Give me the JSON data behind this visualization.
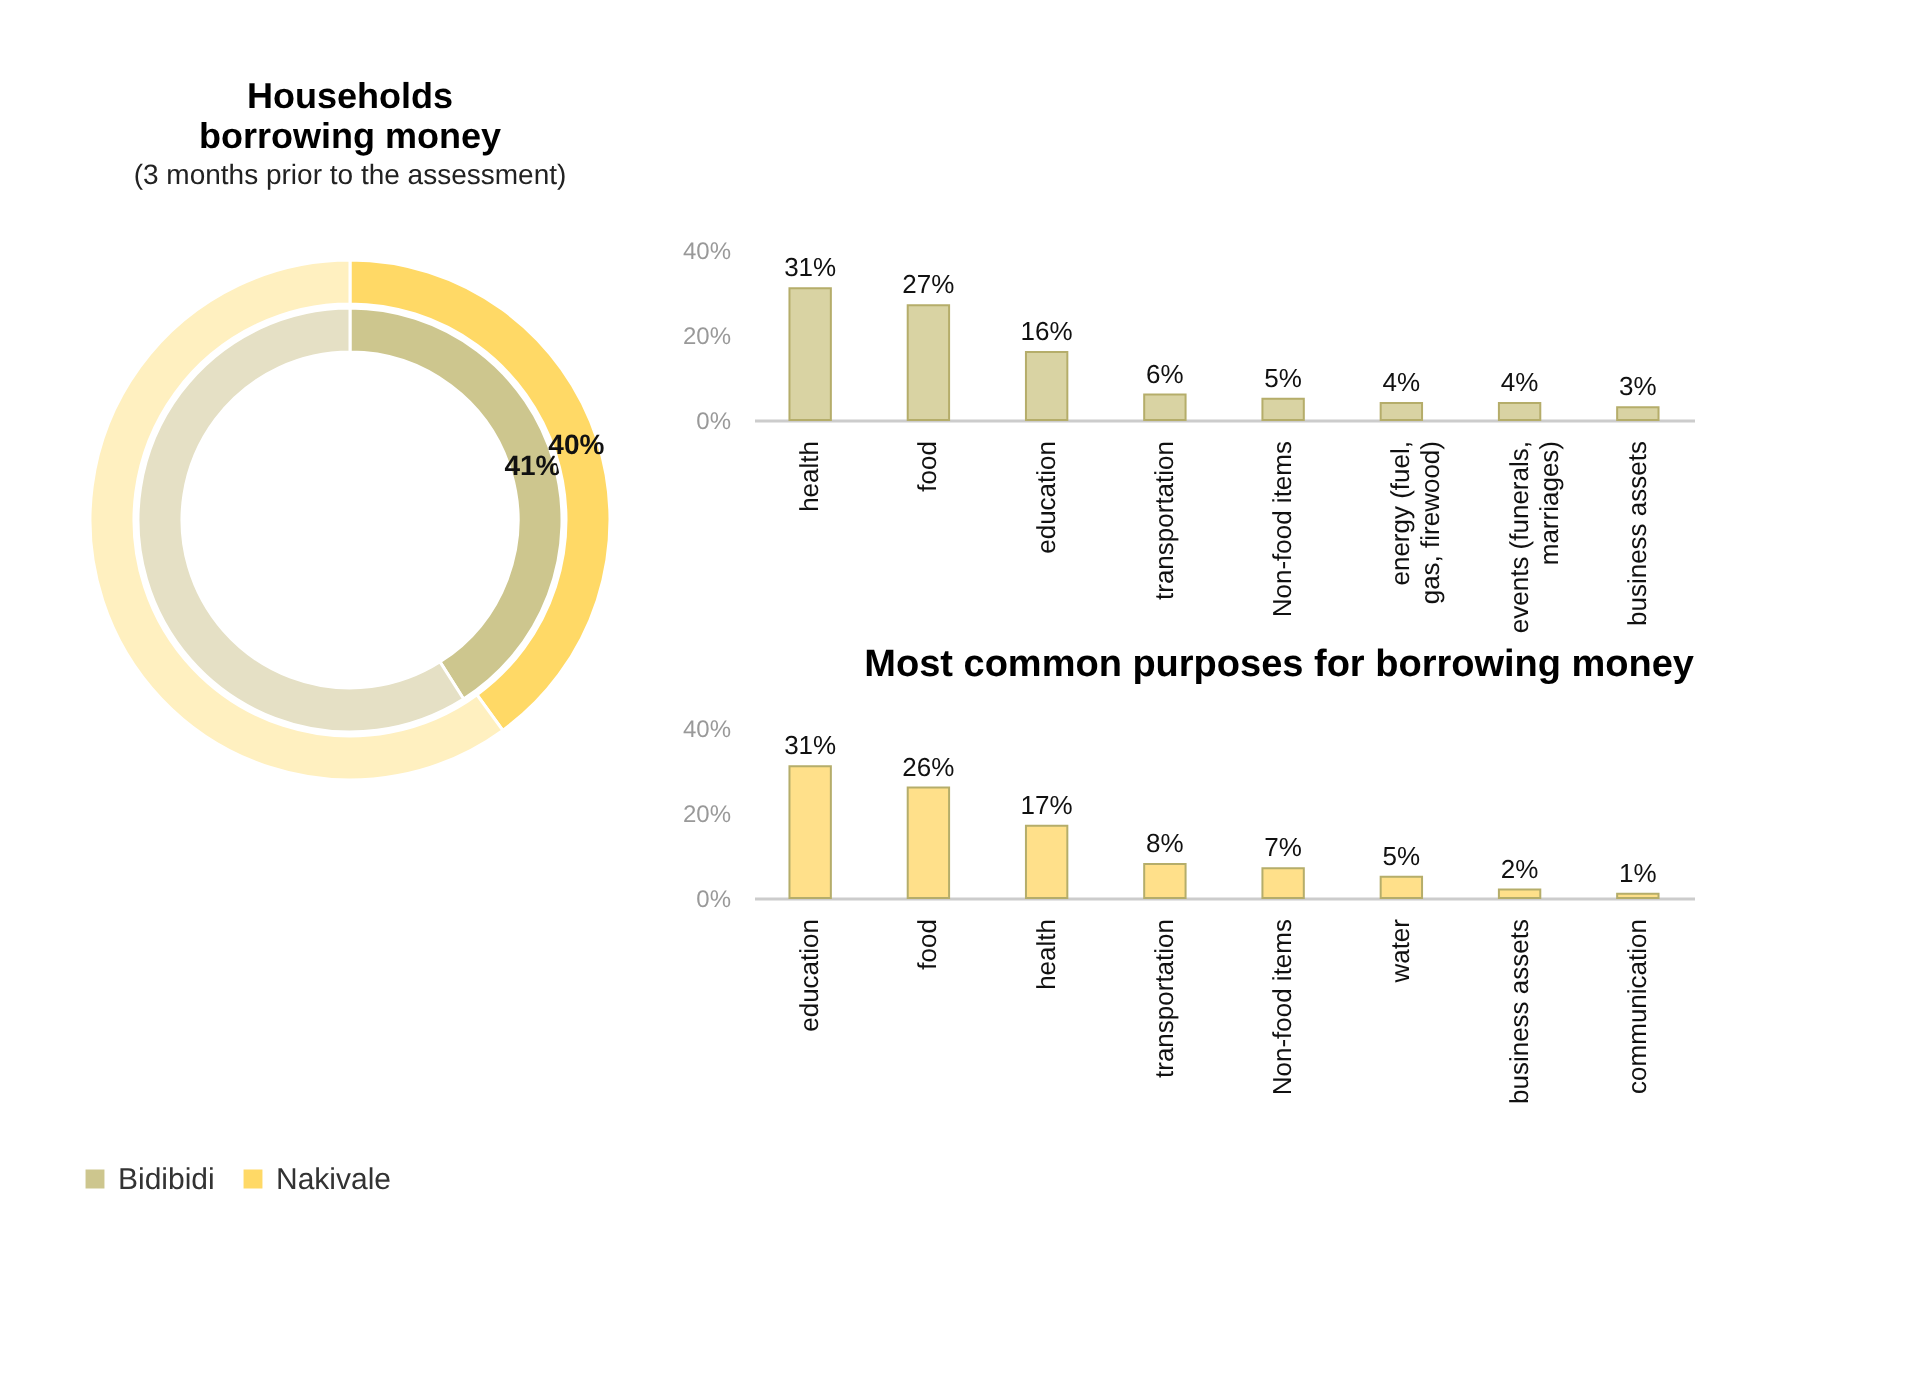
{
  "chart_data": [
    {
      "type": "donut",
      "title": "Households borrowing money",
      "subtitle": "(3 months prior to the assessment)",
      "categories": [
        null,
        null
      ],
      "legend": "bottom",
      "series": [
        {
          "name": "Bidibidi",
          "values": [
            41,
            59
          ],
          "colors": [
            "#cdc68e",
            "#e5e0c5"
          ],
          "value_labels": [
            "41%",
            null
          ]
        },
        {
          "name": "Nakivale",
          "values": [
            40,
            60
          ],
          "colors": [
            "#ffd966",
            "#fff0c0"
          ],
          "value_labels": [
            "40%",
            null
          ]
        }
      ]
    },
    {
      "type": "bar",
      "categories": [
        "health",
        "food",
        "education",
        "transportation",
        "Non-food items",
        "energy (fuel, gas, firewood)",
        "events (funerals, marriages)",
        "business assets"
      ],
      "values": [
        31,
        27,
        16,
        6,
        5,
        4,
        4,
        3
      ],
      "value_labels": [
        "31%",
        "27%",
        "16%",
        "6%",
        "5%",
        "4%",
        "4%",
        "3%"
      ],
      "color": "#d9d3a3",
      "ylim": [
        0,
        40
      ],
      "yticks": [
        {
          "value": 0,
          "label": "0%"
        },
        {
          "value": 20,
          "label": "20%"
        },
        {
          "value": 40,
          "label": "40%"
        }
      ],
      "grid": false
    },
    {
      "type": "bar",
      "title": "Most common purposes for borrowing money",
      "categories": [
        "education",
        "food",
        "health",
        "transportation",
        "Non-food items",
        "water",
        "business assets",
        "communication"
      ],
      "values": [
        31,
        26,
        17,
        8,
        7,
        5,
        2,
        1
      ],
      "value_labels": [
        "31%",
        "26%",
        "17%",
        "8%",
        "7%",
        "5%",
        "2%",
        "1%"
      ],
      "color": "#ffe08a",
      "ylim": [
        0,
        40
      ],
      "yticks": [
        {
          "value": 0,
          "label": "0%"
        },
        {
          "value": 20,
          "label": "20%"
        },
        {
          "value": 40,
          "label": "40%"
        }
      ],
      "grid": false
    }
  ]
}
